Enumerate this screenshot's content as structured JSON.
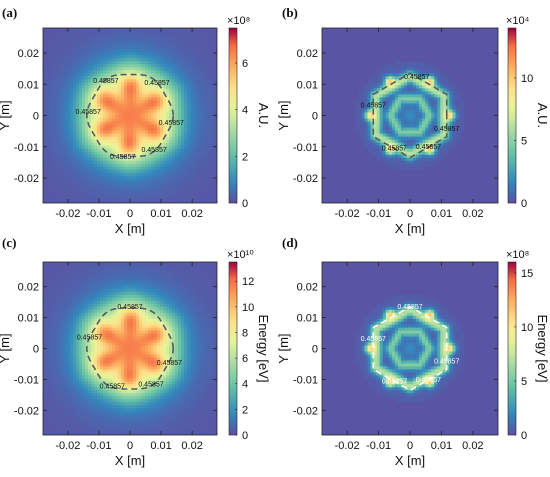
{
  "chart_data": [
    {
      "type": "heatmap",
      "panel_label": "(a)",
      "pattern": "filled-hexagon",
      "xlabel": "X [m]",
      "ylabel": "Y [m]",
      "xticks": [
        "-0.02",
        "-0.01",
        "0",
        "0.01",
        "0.02"
      ],
      "yticks": [
        "0.02",
        "0.01",
        "0",
        "-0.01",
        "-0.02"
      ],
      "xlim": [
        -0.028,
        0.028
      ],
      "ylim": [
        -0.028,
        0.028
      ],
      "colorbar": {
        "label": "A.U.",
        "exponent": "×10⁸",
        "ticks": [
          "0",
          "2",
          "4",
          "6"
        ],
        "min": 0,
        "max": 7.5
      },
      "contour": {
        "level_label": "0.45857",
        "color": "#555a66",
        "label_color": "#111111",
        "labels_at_deg": [
          -10,
          50,
          125,
          175,
          260,
          305
        ]
      },
      "colormap": "spectral"
    },
    {
      "type": "heatmap",
      "panel_label": "(b)",
      "pattern": "hexagon-ring",
      "xlabel": "X [m]",
      "ylabel": "Y [m]",
      "xticks": [
        "-0.02",
        "-0.01",
        "0",
        "0.01",
        "0.02"
      ],
      "yticks": [
        "0.02",
        "0.01",
        "0",
        "-0.01",
        "-0.02"
      ],
      "xlim": [
        -0.028,
        0.028
      ],
      "ylim": [
        -0.028,
        0.028
      ],
      "colorbar": {
        "label": "A.U.",
        "exponent": "×10⁴",
        "ticks": [
          "0",
          "5",
          "10"
        ],
        "min": 0,
        "max": 14
      },
      "contour": {
        "level_label": "0.45857",
        "color": "#555a66",
        "label_color": "#111111",
        "labels_at_deg": [
          -20,
          80,
          165,
          245,
          300
        ]
      },
      "colormap": "spectral"
    },
    {
      "type": "heatmap",
      "panel_label": "(c)",
      "pattern": "filled-hexagon",
      "xlabel": "X [m]",
      "ylabel": "Y [m]",
      "xticks": [
        "-0.02",
        "-0.01",
        "0",
        "0.01",
        "0.02"
      ],
      "yticks": [
        "0.02",
        "0.01",
        "0",
        "-0.01",
        "-0.02"
      ],
      "xlim": [
        -0.028,
        0.028
      ],
      "ylim": [
        -0.028,
        0.028
      ],
      "colorbar": {
        "label": "Energy [eV]",
        "exponent": "×10¹⁰",
        "ticks": [
          "0",
          "2",
          "4",
          "6",
          "8",
          "10",
          "12"
        ],
        "min": 0,
        "max": 13.5
      },
      "contour": {
        "level_label": "0.45857",
        "color": "#555a66",
        "label_color": "#111111",
        "labels_at_deg": [
          -20,
          90,
          165,
          245,
          300
        ]
      },
      "colormap": "spectral"
    },
    {
      "type": "heatmap",
      "panel_label": "(d)",
      "pattern": "hexagon-ring",
      "xlabel": "X [m]",
      "ylabel": "Y [m]",
      "xticks": [
        "-0.02",
        "-0.01",
        "0",
        "0.01",
        "0.02"
      ],
      "yticks": [
        "0.02",
        "0.01",
        "0",
        "-0.01",
        "-0.02"
      ],
      "xlim": [
        -0.028,
        0.028
      ],
      "ylim": [
        -0.028,
        0.028
      ],
      "colorbar": {
        "label": "Energy [eV]",
        "exponent": "×10⁸",
        "ticks": [
          "0",
          "5",
          "10",
          "15"
        ],
        "min": 0,
        "max": 16
      },
      "contour": {
        "level_label": "0.45857",
        "color": "#ffffff",
        "label_color": "#ffffff",
        "labels_at_deg": [
          -20,
          90,
          165,
          245,
          300
        ]
      },
      "colormap": "spectral"
    }
  ]
}
